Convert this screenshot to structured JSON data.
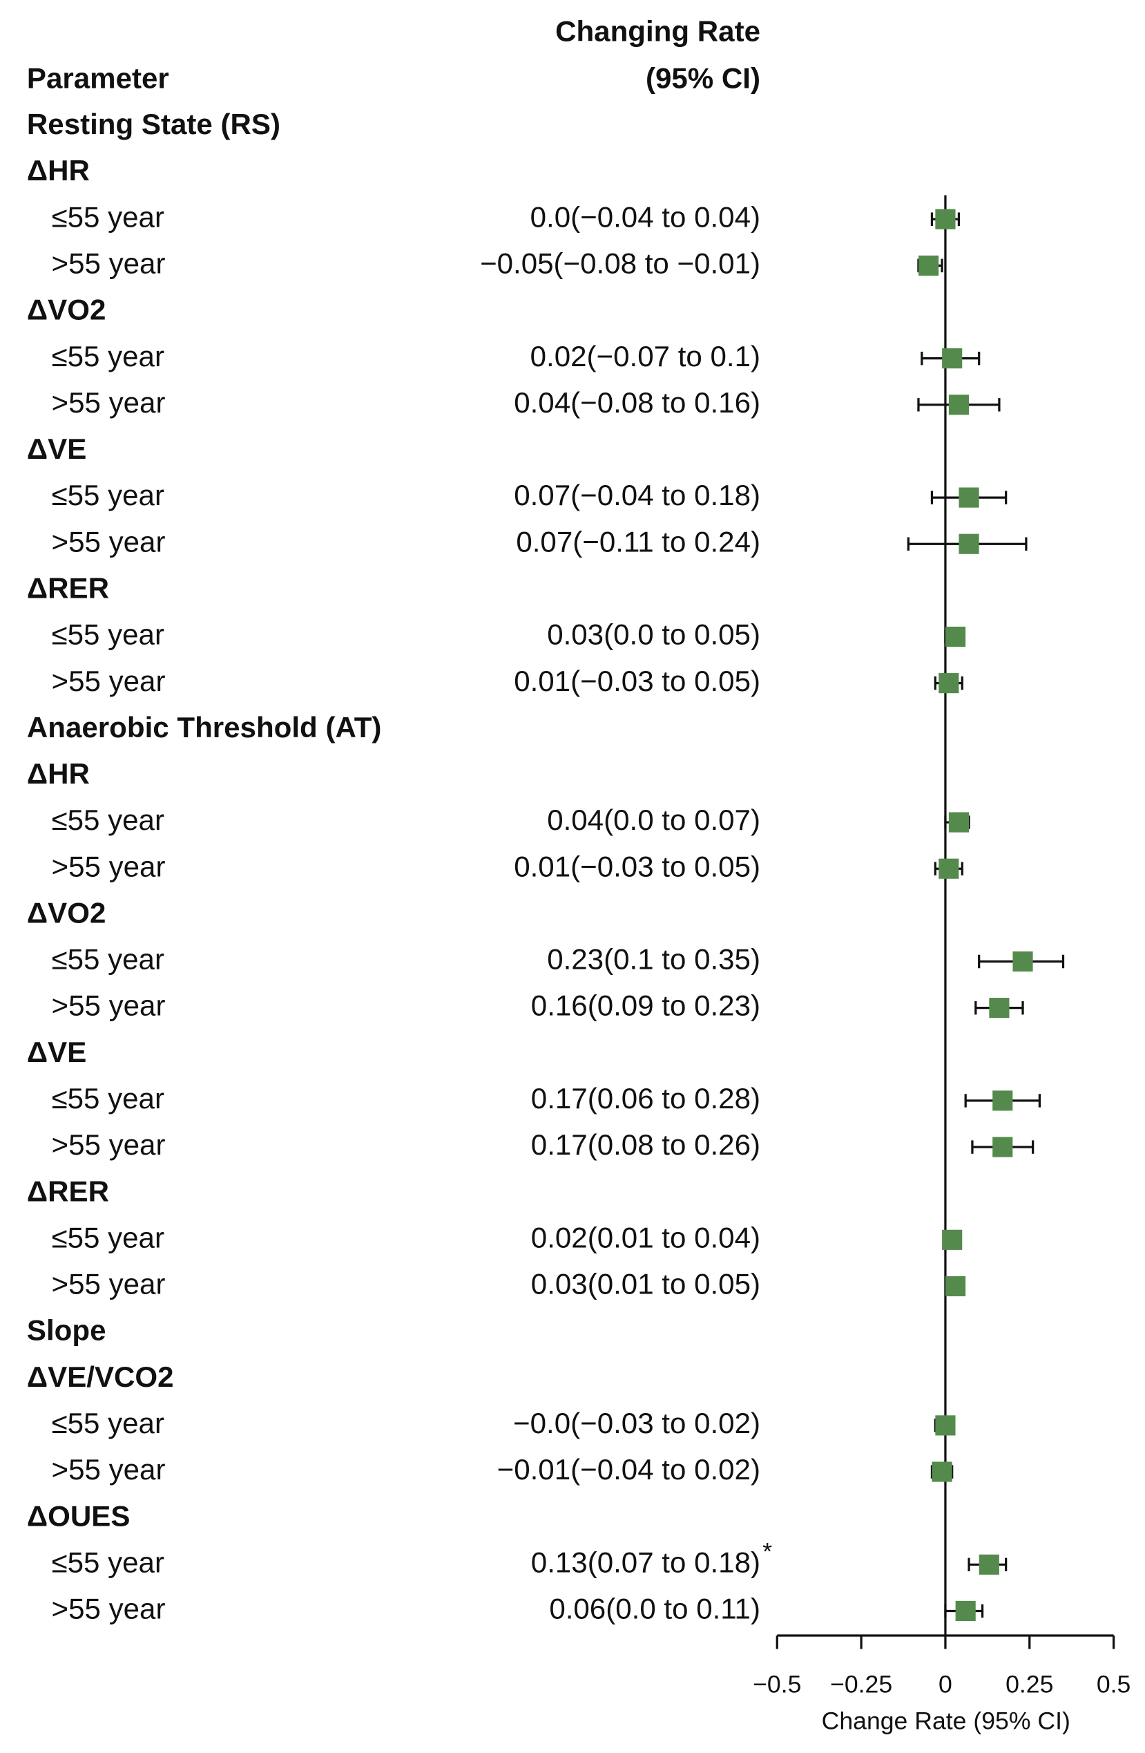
{
  "chart_data": {
    "type": "forest",
    "column_headers": [
      "Parameter",
      "Changing Rate",
      "(95% CI)"
    ],
    "rows": [
      "Resting State (RS)",
      "ΔHR",
      "≤55 year",
      ">55 year",
      "ΔVO2",
      "≤55 year",
      ">55 year",
      "ΔVE",
      "≤55 year",
      ">55 year",
      "ΔRER",
      "≤55 year",
      ">55 year",
      "Anaerobic Threshold (AT)",
      "ΔHR",
      "≤55 year",
      ">55 year",
      "ΔVO2",
      "≤55 year",
      ">55 year",
      "ΔVE",
      "≤55 year",
      ">55 year",
      "ΔRER",
      "≤55 year",
      ">55 year",
      "Slope",
      "ΔVE/VCO2",
      "≤55 year",
      ">55 year",
      "ΔOUES",
      "≤55 year",
      ">55 year"
    ],
    "values": [
      null,
      null,
      0.0,
      -0.05,
      null,
      0.02,
      0.04,
      null,
      0.07,
      0.07,
      null,
      0.03,
      0.01,
      null,
      null,
      0.04,
      0.01,
      null,
      0.23,
      0.16,
      null,
      0.17,
      0.17,
      null,
      0.02,
      0.03,
      null,
      null,
      0,
      -0.01,
      null,
      0.13,
      0.06
    ],
    "lows": [
      null,
      null,
      -0.04,
      -0.08,
      null,
      -0.07,
      -0.08,
      null,
      -0.04,
      -0.11,
      null,
      0.0,
      -0.03,
      null,
      null,
      0.0,
      -0.03,
      null,
      0.1,
      0.09,
      null,
      0.06,
      0.08,
      null,
      0.01,
      0.01,
      null,
      null,
      -0.03,
      -0.04,
      null,
      0.07,
      0.0
    ],
    "highs": [
      null,
      null,
      0.04,
      -0.01,
      null,
      0.1,
      0.16,
      null,
      0.18,
      0.24,
      null,
      0.05,
      0.05,
      null,
      null,
      0.07,
      0.05,
      null,
      0.35,
      0.23,
      null,
      0.28,
      0.26,
      null,
      0.04,
      0.05,
      null,
      null,
      0.02,
      0.02,
      null,
      0.18,
      0.11
    ],
    "value_labels": [
      null,
      null,
      "0.0(−0.04 to 0.04)",
      "−0.05(−0.08 to −0.01)",
      null,
      "0.02(−0.07 to 0.1)",
      "0.04(−0.08 to 0.16)",
      null,
      "0.07(−0.04 to 0.18)",
      "0.07(−0.11 to 0.24)",
      null,
      "0.03(0.0 to 0.05)",
      "0.01(−0.03 to 0.05)",
      null,
      null,
      "0.04(0.0 to 0.07)",
      "0.01(−0.03 to 0.05)",
      null,
      "0.23(0.1 to 0.35)",
      "0.16(0.09 to 0.23)",
      null,
      "0.17(0.06 to 0.28)",
      "0.17(0.08 to 0.26)",
      null,
      "0.02(0.01 to 0.04)",
      "0.03(0.01 to 0.05)",
      null,
      null,
      "−0.0(−0.03 to 0.02)",
      "−0.01(−0.04 to 0.02)",
      null,
      "0.13(0.07 to 0.18)",
      "0.06(0.0 to 0.11)"
    ],
    "significance": [
      null,
      null,
      null,
      null,
      null,
      null,
      null,
      null,
      null,
      null,
      null,
      null,
      null,
      null,
      null,
      null,
      null,
      null,
      null,
      null,
      null,
      null,
      null,
      null,
      null,
      null,
      null,
      null,
      null,
      null,
      null,
      "*",
      null
    ],
    "color": "#548b4c",
    "reference_x": 0,
    "xlim": [
      -0.5,
      0.5
    ],
    "xticks": [
      {
        "value": -0.5,
        "label": "−0.5"
      },
      {
        "value": -0.25,
        "label": "−0.25"
      },
      0,
      0.25,
      0.5
    ],
    "xlabel": "Change Rate (95% CI)"
  }
}
